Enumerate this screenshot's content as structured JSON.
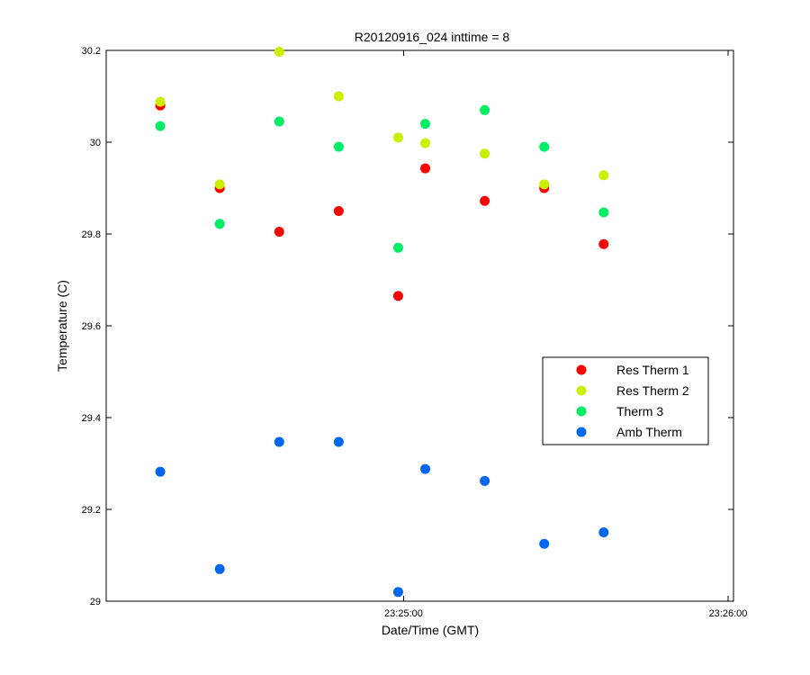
{
  "chart_data": {
    "type": "scatter",
    "title": "R20120916_024 inttime = 8",
    "xlabel": "Date/Time (GMT)",
    "ylabel": "Temperature (C)",
    "xlim": [
      "23:24:05",
      "23:26:01"
    ],
    "ylim": [
      29,
      30.2
    ],
    "x_ticks": [
      "23:25:00",
      "23:26:00"
    ],
    "y_ticks": [
      "29",
      "29.2",
      "29.4",
      "29.6",
      "29.8",
      "30",
      "30.2"
    ],
    "x": [
      "23:24:15",
      "23:24:26",
      "23:24:37",
      "23:24:48",
      "23:24:59",
      "23:25:04",
      "23:25:15",
      "23:25:26",
      "23:25:37"
    ],
    "x_note_visible_only": "",
    "series": [
      {
        "name": "Res Therm 1",
        "color": "#ff0000",
        "values": [
          30.08,
          29.9,
          29.805,
          29.85,
          29.665,
          29.943,
          29.872,
          29.9,
          29.778
        ]
      },
      {
        "name": "Res Therm 2",
        "color": "#ccee00",
        "values": [
          30.088,
          29.908,
          30.197,
          30.1,
          30.01,
          29.998,
          29.975,
          29.908,
          29.928
        ]
      },
      {
        "name": "Therm 3",
        "color": "#00ee66",
        "values": [
          30.035,
          29.822,
          30.045,
          29.99,
          29.77,
          30.04,
          30.07,
          29.99,
          29.847
        ]
      },
      {
        "name": "Amb Therm",
        "color": "#0066ee",
        "values": [
          29.282,
          29.07,
          29.347,
          29.347,
          29.02,
          29.288,
          29.262,
          29.125,
          29.15
        ]
      }
    ],
    "grid": false,
    "legend_position": "right"
  }
}
